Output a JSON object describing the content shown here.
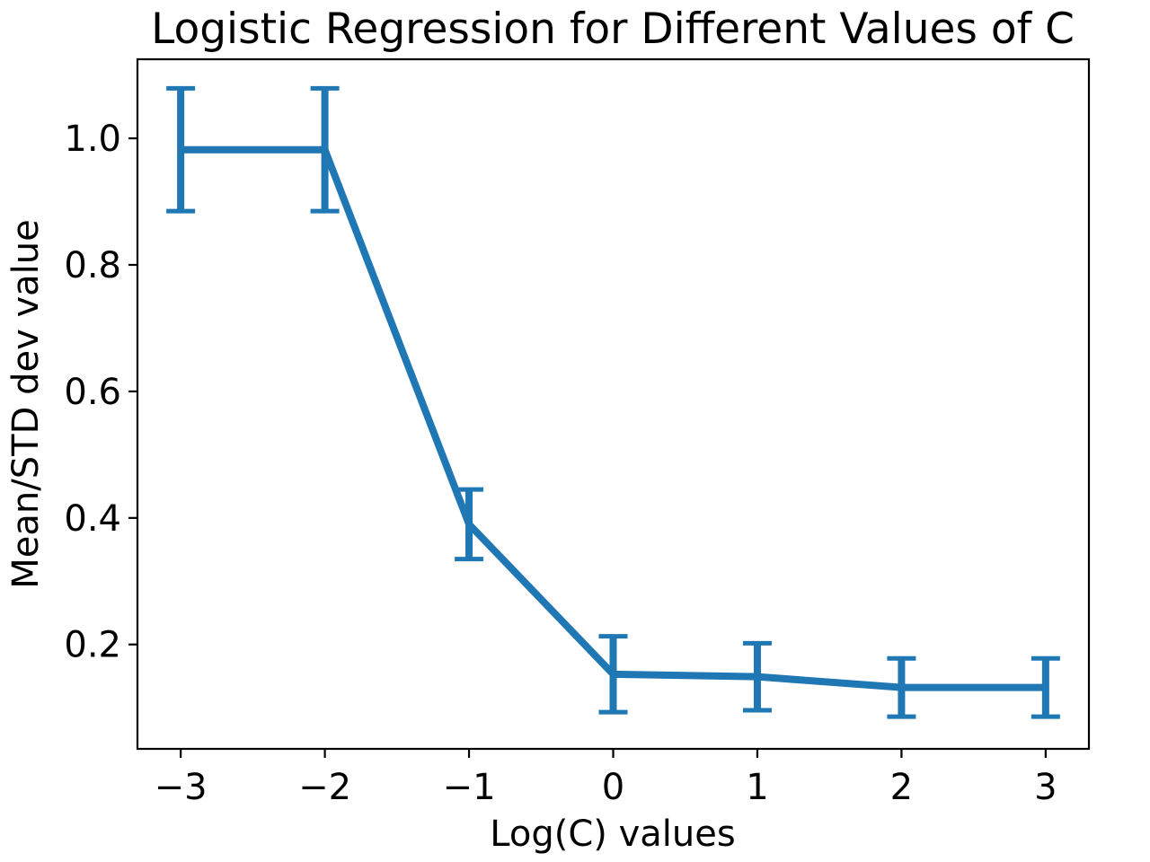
{
  "chart_data": {
    "type": "line",
    "title": "Logistic Regression for Different Values of C",
    "xlabel": "Log(C) values",
    "ylabel": "Mean/STD dev value",
    "xlim": [
      -3.3,
      3.3
    ],
    "ylim": [
      0.035,
      1.125
    ],
    "x_ticks": [
      -3,
      -2,
      -1,
      0,
      1,
      2,
      3
    ],
    "x_tick_labels": [
      "−3",
      "−2",
      "−1",
      "0",
      "1",
      "2",
      "3"
    ],
    "y_ticks": [
      0.2,
      0.4,
      0.6,
      0.8,
      1.0
    ],
    "y_tick_labels": [
      "0.2",
      "0.4",
      "0.6",
      "0.8",
      "1.0"
    ],
    "grid": false,
    "legend": "none",
    "series": [
      {
        "x": [
          -3,
          -2,
          -1,
          0,
          1,
          2,
          3
        ],
        "values": [
          0.982,
          0.982,
          0.39,
          0.153,
          0.149,
          0.132,
          0.132
        ],
        "error": [
          0.097,
          0.097,
          0.055,
          0.06,
          0.053,
          0.046,
          0.046
        ],
        "color": "#1f77b4"
      }
    ]
  }
}
